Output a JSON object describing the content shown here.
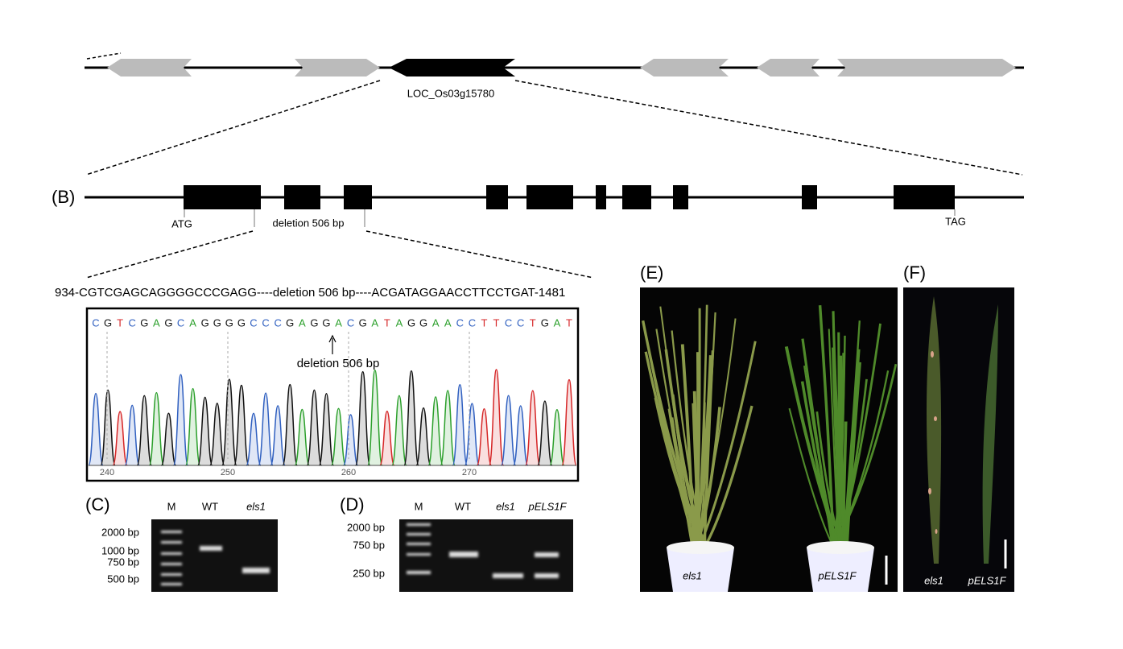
{
  "panel_a": {
    "gene_label": "LOC_Os03g15780"
  },
  "panel_b": {
    "label": "(B)",
    "start": "ATG",
    "deletion": "deletion 506 bp",
    "stop": "TAG"
  },
  "sequence": {
    "text": "934-CGTCGAGCAGGGGCCCGAGG----deletion 506 bp----ACGATAGGAACCTTCCTGAT-1481",
    "bases": [
      "C",
      "G",
      "T",
      "C",
      "G",
      "A",
      "G",
      "C",
      "A",
      "G",
      "G",
      "G",
      "G",
      "C",
      "C",
      "C",
      "G",
      "A",
      "G",
      "G",
      "A",
      "C",
      "G",
      "A",
      "T",
      "A",
      "G",
      "G",
      "A",
      "A",
      "C",
      "C",
      "T",
      "T",
      "C",
      "C",
      "T",
      "G",
      "A",
      "T"
    ],
    "annotation": "deletion 506 bp",
    "positions": [
      "240",
      "250",
      "260",
      "270"
    ]
  },
  "panel_c": {
    "label": "(C)",
    "lanes": [
      "M",
      "WT",
      "els1"
    ],
    "markers": [
      "2000 bp",
      "1000 bp",
      "750 bp",
      "500 bp"
    ]
  },
  "panel_d": {
    "label": "(D)",
    "lanes": [
      "M",
      "WT",
      "els1",
      "pELS1F"
    ],
    "markers": [
      "2000 bp",
      "750 bp",
      "250 bp"
    ]
  },
  "panel_e": {
    "label": "(E)",
    "plants": [
      "els1",
      "pELS1F"
    ]
  },
  "panel_f": {
    "label": "(F)",
    "leaves": [
      "els1",
      "pELS1F"
    ]
  }
}
